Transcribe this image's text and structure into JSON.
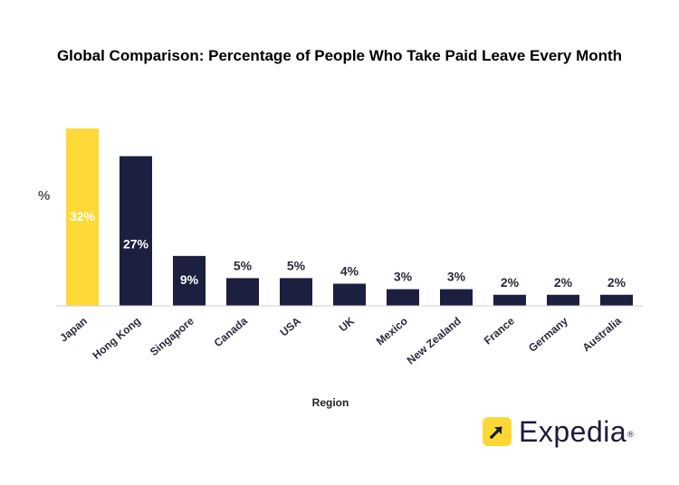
{
  "chart_data": {
    "type": "bar",
    "title": "Global Comparison: Percentage of People Who Take Paid Leave Every Month",
    "xlabel": "Region",
    "ylabel": "%",
    "categories": [
      "Japan",
      "Hong Kong",
      "Singapore",
      "Canada",
      "USA",
      "UK",
      "Mexico",
      "New Zealand",
      "France",
      "Germany",
      "Australia"
    ],
    "values": [
      32,
      27,
      9,
      5,
      5,
      4,
      3,
      3,
      2,
      2,
      2
    ],
    "data_labels": [
      "32%",
      "27%",
      "9%",
      "5%",
      "5%",
      "4%",
      "3%",
      "3%",
      "2%",
      "2%",
      "2%"
    ],
    "ylim": [
      0,
      32
    ],
    "grid": false,
    "colors": {
      "highlight": "#FDDA37",
      "default": "#1C1F3F",
      "label_inside": "#ffffff",
      "label_outside": "#2a2a3a"
    }
  },
  "logo": {
    "text": "Expedia",
    "mark": "®",
    "icon": "arrow-up-right-icon",
    "badge_color": "#FDD835",
    "text_color": "#1b1b3a"
  }
}
